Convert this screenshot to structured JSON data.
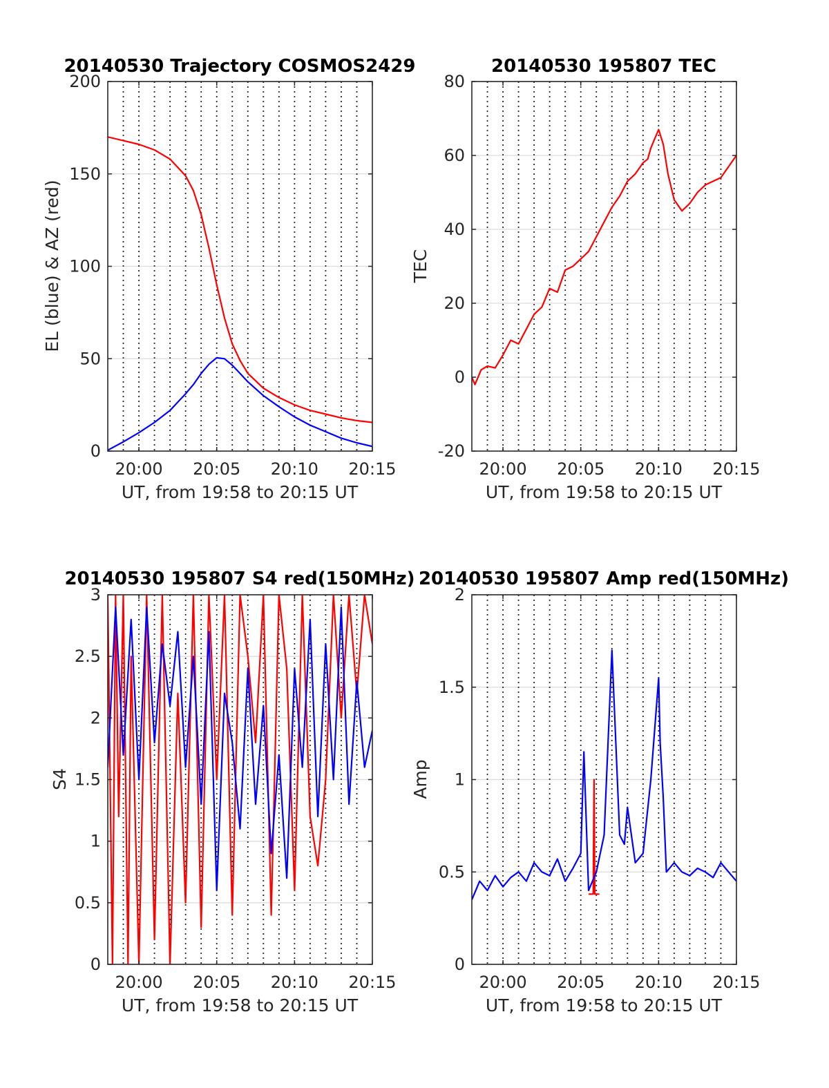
{
  "colors": {
    "red": "#ff0000",
    "blue": "#0000ff"
  },
  "chart_data": [
    {
      "id": "trajectory",
      "type": "line",
      "title": "20140530 Trajectory COSMOS2429",
      "xlabel": "UT, from 19:58 to 20:15 UT",
      "ylabel": "EL (blue) & AZ (red)",
      "xlim": [
        0,
        17
      ],
      "ylim": [
        0,
        200
      ],
      "xticks": [
        2,
        7,
        12,
        17
      ],
      "xtick_labels": [
        "20:00",
        "20:05",
        "20:10",
        "20:15"
      ],
      "yticks": [
        0,
        50,
        100,
        150,
        200
      ],
      "ytick_labels": [
        "0",
        "50",
        "100",
        "150",
        "200"
      ],
      "grid": "dotted vertical every minute, light horizontal",
      "series": [
        {
          "color": "#ff0000",
          "x": [
            0,
            1,
            2,
            3,
            4,
            5,
            5.5,
            6,
            6.5,
            7,
            7.5,
            8,
            8.5,
            9,
            10,
            11,
            12,
            13,
            14,
            15,
            16,
            17
          ],
          "y": [
            170,
            168,
            166,
            163,
            158,
            149,
            141,
            128,
            110,
            90,
            72,
            58,
            49,
            42,
            34,
            29,
            25,
            22,
            20,
            18,
            16.5,
            15.5
          ]
        },
        {
          "color": "#0000ff",
          "x": [
            0,
            1,
            2,
            3,
            4,
            5,
            5.5,
            6,
            6.5,
            7,
            7.5,
            8,
            8.5,
            9,
            10,
            11,
            12,
            13,
            14,
            15,
            16,
            17
          ],
          "y": [
            0.5,
            5,
            10,
            15.5,
            22,
            31,
            36,
            42,
            47,
            50.5,
            50,
            46.5,
            42,
            37.5,
            30,
            24,
            18.5,
            14,
            10.5,
            7,
            4.5,
            2.5
          ]
        }
      ]
    },
    {
      "id": "tec",
      "type": "line",
      "title": "20140530 195807 TEC",
      "xlabel": "UT, from 19:58 to 20:15 UT",
      "ylabel": "TEC",
      "xlim": [
        0,
        17
      ],
      "ylim": [
        -20,
        80
      ],
      "xticks": [
        2,
        7,
        12,
        17
      ],
      "xtick_labels": [
        "20:00",
        "20:05",
        "20:10",
        "20:15"
      ],
      "yticks": [
        -20,
        0,
        20,
        40,
        60,
        80
      ],
      "ytick_labels": [
        "-20",
        "0",
        "20",
        "40",
        "60",
        "80"
      ],
      "grid": "dotted vertical every minute, light horizontal",
      "series": [
        {
          "color": "#ff0000",
          "x": [
            0,
            0.2,
            0.6,
            1,
            1.5,
            2,
            2.5,
            3,
            3.5,
            4,
            4.5,
            5,
            5.5,
            6,
            6.5,
            7,
            7.5,
            8,
            8.5,
            9,
            9.5,
            10,
            10.5,
            11,
            11.3,
            11.5,
            11.8,
            12,
            12.3,
            12.6,
            13,
            13.5,
            14,
            14.5,
            15,
            15.5,
            16,
            16.5,
            17
          ],
          "y": [
            0,
            -2,
            2,
            3,
            2.5,
            6,
            10,
            9,
            13,
            17,
            19,
            24,
            23,
            29,
            30,
            32,
            34,
            38,
            42,
            46,
            49,
            53,
            55,
            58,
            59,
            62,
            65,
            67,
            63,
            55,
            48,
            45,
            47,
            50,
            52,
            53,
            54,
            57,
            60
          ]
        }
      ]
    },
    {
      "id": "s4",
      "type": "line",
      "title": "20140530 195807 S4 red(150MHz)",
      "xlabel": "UT, from 19:58 to 20:15 UT",
      "ylabel": "S4",
      "xlim": [
        0,
        17
      ],
      "ylim": [
        0,
        3
      ],
      "xticks": [
        2,
        7,
        12,
        17
      ],
      "xtick_labels": [
        "20:00",
        "20:05",
        "20:10",
        "20:15"
      ],
      "yticks": [
        0,
        0.5,
        1,
        1.5,
        2,
        2.5,
        3
      ],
      "ytick_labels": [
        "0",
        "0.5",
        "1",
        "1.5",
        "2",
        "2.5",
        "3"
      ],
      "grid": "dotted vertical every minute, light horizontal",
      "series": [
        {
          "color": "#ff0000",
          "x": [
            0,
            0.3,
            0.5,
            0.7,
            1,
            1.3,
            1.5,
            2,
            2.5,
            3,
            3.5,
            4,
            4.5,
            5,
            5.5,
            6,
            6.5,
            7,
            7.5,
            8,
            8.5,
            9,
            9.5,
            10,
            10.5,
            11,
            11.5,
            12,
            12.5,
            13,
            13.5,
            14,
            14.5,
            15,
            15.5,
            16,
            16.5,
            17
          ],
          "y": [
            3,
            0,
            3,
            1.2,
            3,
            0,
            2.5,
            0,
            3,
            0.2,
            3,
            0,
            2.2,
            0.5,
            3,
            0.3,
            3,
            1.5,
            3,
            0.4,
            3,
            2.5,
            1.8,
            3,
            0.4,
            3,
            2.4,
            0.6,
            3,
            1.2,
            0.8,
            1.5,
            3,
            2,
            3,
            2.2,
            3,
            2.6
          ]
        },
        {
          "color": "#0000ff",
          "x": [
            0,
            0.5,
            1,
            1.5,
            2,
            2.5,
            3,
            3.5,
            4,
            4.5,
            5,
            5.5,
            6,
            6.5,
            7,
            7.5,
            8,
            8.5,
            9,
            9.5,
            10,
            10.5,
            11,
            11.5,
            12,
            12.5,
            13,
            13.5,
            14,
            14.5,
            15,
            15.5,
            16,
            16.5,
            17
          ],
          "y": [
            1.6,
            2.9,
            1.7,
            2.8,
            1.5,
            2.9,
            1.8,
            2.6,
            2.1,
            2.7,
            1.6,
            2.5,
            1.3,
            2.7,
            0.6,
            2.2,
            1.8,
            1.1,
            2.4,
            1.3,
            2.1,
            0.9,
            1.7,
            0.7,
            2.4,
            1.6,
            2.8,
            1.2,
            2.6,
            1.5,
            2.9,
            1.3,
            2.3,
            1.6,
            1.9
          ]
        }
      ]
    },
    {
      "id": "amp",
      "type": "line",
      "title": "20140530 195807 Amp red(150MHz)",
      "xlabel": "UT, from 19:58 to 20:15 UT",
      "ylabel": "Amp",
      "xlim": [
        0,
        17
      ],
      "ylim": [
        0,
        2
      ],
      "xticks": [
        2,
        7,
        12,
        17
      ],
      "xtick_labels": [
        "20:00",
        "20:05",
        "20:10",
        "20:15"
      ],
      "yticks": [
        0,
        0.5,
        1,
        1.5,
        2
      ],
      "ytick_labels": [
        "0",
        "0.5",
        "1",
        "1.5",
        "2"
      ],
      "grid": "dotted vertical every minute, light horizontal",
      "series": [
        {
          "color": "#ff0000",
          "x": [
            7.5,
            7.6,
            7.8,
            7.85,
            7.9,
            8.0,
            8.2
          ],
          "y": [
            0.38,
            0.38,
            0.38,
            1.0,
            0.38,
            0.38,
            0.38
          ]
        },
        {
          "color": "#0000ff",
          "x": [
            0,
            0.5,
            1,
            1.5,
            2,
            2.5,
            3,
            3.5,
            4,
            4.5,
            5,
            5.5,
            6,
            6.5,
            7,
            7.2,
            7.5,
            8,
            8.5,
            9,
            9.5,
            9.8,
            10,
            10.5,
            11,
            11.5,
            12,
            12.1,
            12.3,
            12.5,
            13,
            13.5,
            14,
            14.5,
            15,
            15.5,
            16,
            16.5,
            17
          ],
          "y": [
            0.35,
            0.45,
            0.4,
            0.48,
            0.42,
            0.47,
            0.5,
            0.45,
            0.55,
            0.5,
            0.48,
            0.57,
            0.45,
            0.52,
            0.6,
            1.15,
            0.4,
            0.5,
            0.7,
            1.7,
            0.7,
            0.65,
            0.85,
            0.55,
            0.6,
            1.0,
            1.55,
            1.2,
            0.9,
            0.5,
            0.55,
            0.5,
            0.48,
            0.52,
            0.5,
            0.47,
            0.55,
            0.5,
            0.45
          ]
        }
      ]
    }
  ]
}
